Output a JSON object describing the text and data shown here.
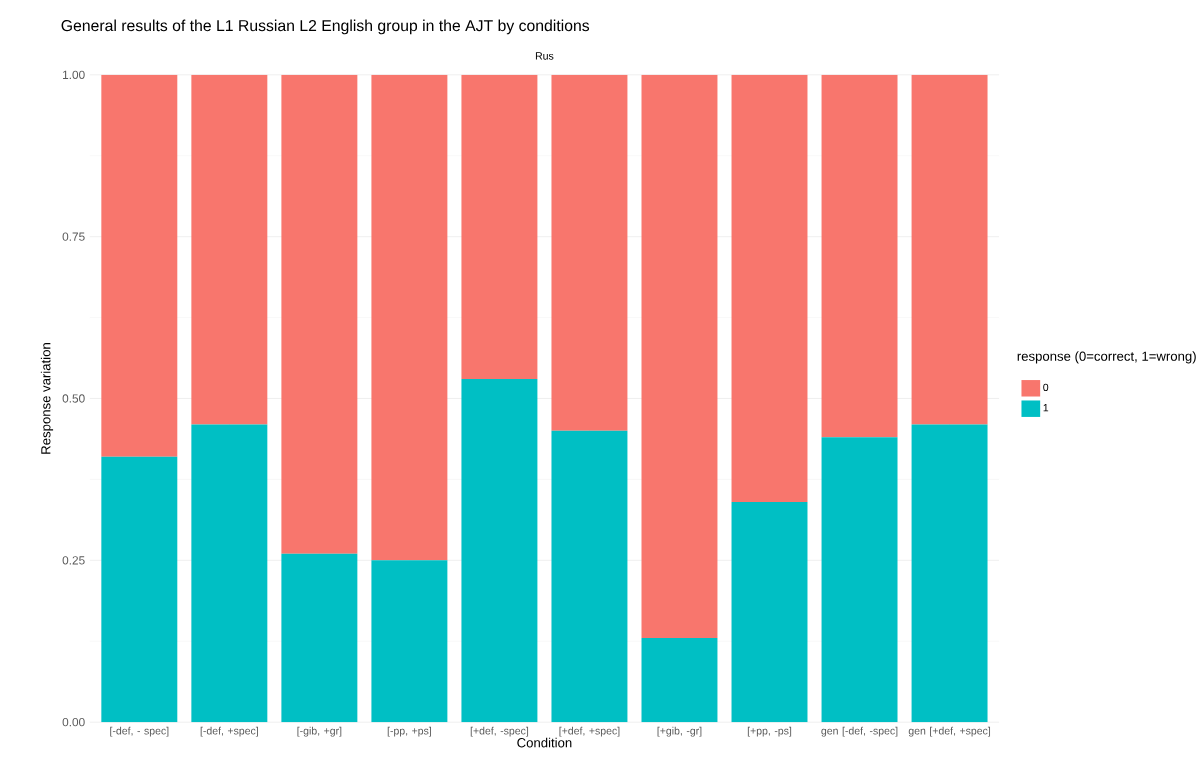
{
  "chart_data": {
    "type": "bar",
    "title": "General results of the L1 Russian L2 English group in the AJT by conditions",
    "subtitle": "Rus",
    "xlabel": "Condition",
    "ylabel": "Response variation",
    "legend_title": "response (0=correct, 1=wrong)",
    "categories": [
      "[-def, - spec]",
      "[-def, +spec]",
      "[-gib, +gr]",
      "[-pp, +ps]",
      "[+def, -spec]",
      "[+def, +spec]",
      "[+gib, -gr]",
      "[+pp, -ps]",
      "gen [-def, -spec]",
      "gen [+def, +spec]"
    ],
    "stacked": true,
    "series": [
      {
        "name": "1",
        "color": "#00bfc4",
        "values": [
          0.41,
          0.46,
          0.26,
          0.25,
          0.53,
          0.45,
          0.13,
          0.34,
          0.44,
          0.46
        ]
      },
      {
        "name": "0",
        "color": "#f8766d",
        "values": [
          0.59,
          0.54,
          0.74,
          0.75,
          0.47,
          0.55,
          0.87,
          0.66,
          0.56,
          0.54
        ]
      }
    ],
    "ylim": [
      0,
      1
    ],
    "yticks": [
      {
        "value": 0,
        "label": "0.00"
      },
      {
        "value": 0.25,
        "label": "0.25"
      },
      {
        "value": 0.5,
        "label": "0.50"
      },
      {
        "value": 0.75,
        "label": "0.75"
      },
      {
        "value": 1,
        "label": "1.00"
      }
    ],
    "grid": true,
    "legend": "right"
  }
}
